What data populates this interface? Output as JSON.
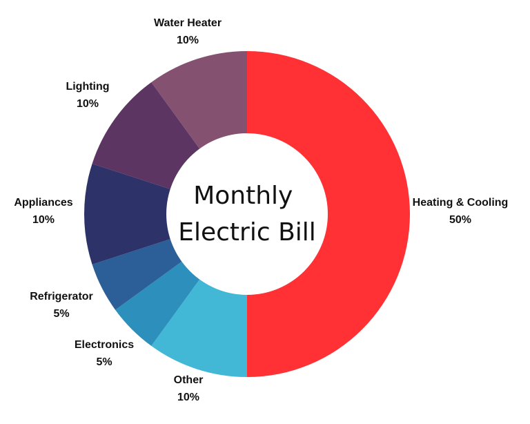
{
  "chart_data": {
    "type": "pie",
    "title": "Monthly Electric Bill",
    "title_lines": [
      "Monthly",
      "Electric Bill"
    ],
    "categories": [
      "Heating & Cooling",
      "Other",
      "Electronics",
      "Refrigerator",
      "Appliances",
      "Lighting",
      "Water Heater"
    ],
    "values": [
      50,
      10,
      5,
      5,
      10,
      10,
      10
    ],
    "value_labels": [
      "50%",
      "10%",
      "5%",
      "5%",
      "10%",
      "10%",
      "10%"
    ],
    "colors": [
      "#ff3135",
      "#43b8d6",
      "#2d8fbc",
      "#2c5f98",
      "#2d3368",
      "#5c3562",
      "#855170"
    ],
    "donut": true
  }
}
